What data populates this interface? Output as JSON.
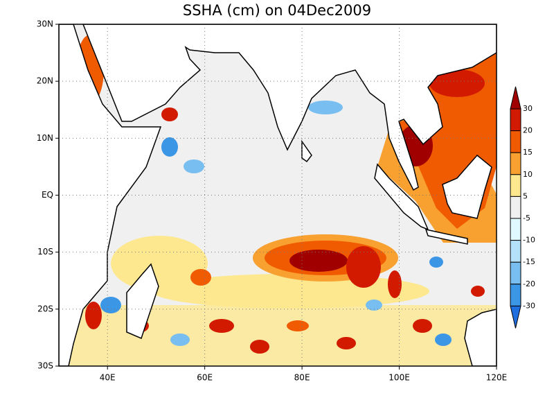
{
  "title": "SSHA (cm) on 04Dec2009",
  "map": {
    "lon_ticks": [
      "40E",
      "60E",
      "80E",
      "100E",
      "120E"
    ],
    "lat_ticks": [
      "30N",
      "20N",
      "10N",
      "EQ",
      "10S",
      "20S",
      "30S"
    ]
  },
  "colorbar": {
    "levels": [
      30,
      20,
      15,
      10,
      5,
      -5,
      -10,
      -15,
      -20,
      -30
    ],
    "colors": [
      "#a00000",
      "#d21a00",
      "#f05a00",
      "#f8a030",
      "#fde890",
      "#f0f0f0",
      "#e0f8ff",
      "#b4e0fa",
      "#78bef0",
      "#3c96e6",
      "#1e6ee0"
    ]
  }
}
